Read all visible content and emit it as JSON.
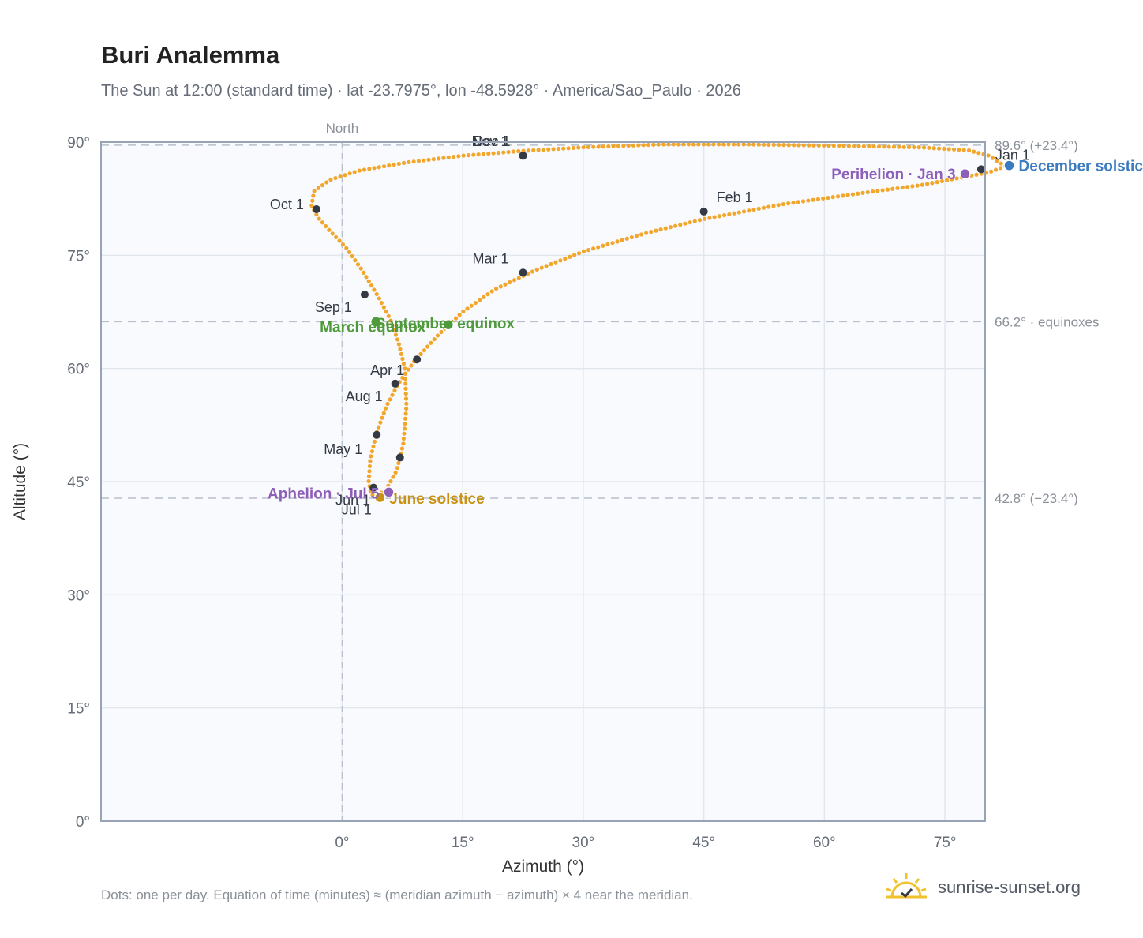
{
  "title": "Buri Analemma",
  "subtitle": "The Sun at 12:00 (standard time) · lat -23.7975°, lon -48.5928° · America/Sao_Paulo · 2026",
  "footnote": "Dots: one per day. Equation of time (minutes) ≈ (meridian azimuth − azimuth) × 4 near the meridian.",
  "brand": {
    "name": "sunrise-sunset.org",
    "icon": "sun-checkmark-logo"
  },
  "chart_data": {
    "type": "scatter",
    "xlabel": "Azimuth (°)",
    "ylabel": "Altitude (°)",
    "xlim": [
      -30,
      80
    ],
    "ylim": [
      0,
      90
    ],
    "x_ticks": [
      {
        "v": 0,
        "label": "0°"
      },
      {
        "v": 15,
        "label": "15°"
      },
      {
        "v": 30,
        "label": "30°"
      },
      {
        "v": 45,
        "label": "45°"
      },
      {
        "v": 60,
        "label": "60°"
      },
      {
        "v": 75,
        "label": "75°"
      }
    ],
    "y_ticks": [
      {
        "v": 0,
        "label": "0°"
      },
      {
        "v": 15,
        "label": "15°"
      },
      {
        "v": 30,
        "label": "30°"
      },
      {
        "v": 45,
        "label": "45°"
      },
      {
        "v": 60,
        "label": "60°"
      },
      {
        "v": 75,
        "label": "75°"
      },
      {
        "v": 90,
        "label": "90°"
      }
    ],
    "grid": true,
    "north_line": {
      "x": 0,
      "label": "North"
    },
    "reference_lines": [
      {
        "y": 89.6,
        "label": "89.6° (+23.4°)"
      },
      {
        "y": 66.2,
        "label": "66.2° · equinoxes"
      },
      {
        "y": 42.8,
        "label": "42.8° (−23.4°)"
      }
    ],
    "analemma_path": [
      [
        82.5,
        86.8
      ],
      [
        80.5,
        88.2
      ],
      [
        78.0,
        88.9
      ],
      [
        72.0,
        89.3
      ],
      [
        62.0,
        89.5
      ],
      [
        50.0,
        89.7
      ],
      [
        40.0,
        89.7
      ],
      [
        30.0,
        89.3
      ],
      [
        22.0,
        88.8
      ],
      [
        15.0,
        88.2
      ],
      [
        8.0,
        87.3
      ],
      [
        2.0,
        86.2
      ],
      [
        -1.5,
        85.0
      ],
      [
        -3.5,
        83.5
      ],
      [
        -3.8,
        81.6
      ],
      [
        -3.0,
        80.0
      ],
      [
        -1.5,
        78.2
      ],
      [
        0.5,
        76.0
      ],
      [
        2.5,
        73.0
      ],
      [
        4.5,
        69.5
      ],
      [
        6.0,
        66.5
      ],
      [
        7.0,
        63.5
      ],
      [
        7.8,
        60.0
      ],
      [
        8.0,
        55.0
      ],
      [
        7.6,
        50.0
      ],
      [
        6.8,
        46.5
      ],
      [
        5.5,
        44.0
      ],
      [
        4.3,
        43.1
      ],
      [
        3.6,
        43.3
      ],
      [
        3.3,
        45.0
      ],
      [
        3.5,
        48.0
      ],
      [
        4.3,
        51.5
      ],
      [
        5.5,
        55.0
      ],
      [
        7.0,
        58.0
      ],
      [
        9.0,
        61.0
      ],
      [
        12.0,
        64.5
      ],
      [
        15.0,
        67.5
      ],
      [
        19.0,
        70.5
      ],
      [
        24.0,
        73.0
      ],
      [
        30.0,
        75.5
      ],
      [
        38.0,
        78.0
      ],
      [
        45.0,
        79.8
      ],
      [
        55.0,
        81.8
      ],
      [
        65.0,
        83.3
      ],
      [
        72.0,
        84.3
      ],
      [
        77.0,
        85.3
      ],
      [
        80.5,
        86.0
      ],
      [
        82.5,
        86.8
      ]
    ],
    "month_markers": [
      {
        "label": "Jan 1",
        "x": 79.5,
        "y": 86.4
      },
      {
        "label": "Feb 1",
        "x": 45.0,
        "y": 80.8
      },
      {
        "label": "Mar 1",
        "x": 22.5,
        "y": 72.7
      },
      {
        "label": "Apr 1",
        "x": 9.3,
        "y": 61.2
      },
      {
        "label": "May 1",
        "x": 4.3,
        "y": 51.2
      },
      {
        "label": "Jun 1",
        "x": 3.9,
        "y": 44.2
      },
      {
        "label": "Jul 1",
        "x": 7.2,
        "y": 48.2
      },
      {
        "label": "Aug 1",
        "x": 6.6,
        "y": 58.0
      },
      {
        "label": "Sep 1",
        "x": 2.8,
        "y": 69.8
      },
      {
        "label": "Oct 1",
        "x": -3.2,
        "y": 81.1
      },
      {
        "label": "Nov 1",
        "x": 22.5,
        "y": 88.2
      },
      {
        "label": "Dec 1",
        "x": 22.5,
        "y": 88.2
      }
    ],
    "events": [
      {
        "label": "December solstice",
        "x": 83.0,
        "y": 86.9,
        "color": "#3b7bbf"
      },
      {
        "label": "June solstice",
        "x": 4.7,
        "y": 42.9,
        "color": "#c99213"
      },
      {
        "label": "March equinox",
        "x": 4.2,
        "y": 66.2,
        "color": "#4f9a3a"
      },
      {
        "label": "September equinox",
        "x": 13.2,
        "y": 65.8,
        "color": "#4f9a3a"
      },
      {
        "label": "Perihelion · Jan 3",
        "x": 77.5,
        "y": 85.8,
        "color": "#8d5fb8"
      },
      {
        "label": "Aphelion · Jul 5",
        "x": 5.8,
        "y": 43.6,
        "color": "#8d5fb8"
      }
    ],
    "colors": {
      "analemma": "#f2a62b",
      "month_marker": "#333a44",
      "plot_bg": "#f8fafd",
      "grid": "#e2e7ee",
      "reference": "#b7c0cc"
    }
  }
}
